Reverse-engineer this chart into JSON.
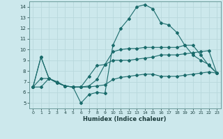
{
  "xlabel": "Humidex (Indice chaleur)",
  "xlim": [
    -0.5,
    23.5
  ],
  "ylim": [
    4.5,
    14.5
  ],
  "yticks": [
    5,
    6,
    7,
    8,
    9,
    10,
    11,
    12,
    13,
    14
  ],
  "xticks": [
    0,
    1,
    2,
    3,
    4,
    5,
    6,
    7,
    8,
    9,
    10,
    11,
    12,
    13,
    14,
    15,
    16,
    17,
    18,
    19,
    20,
    21,
    22,
    23
  ],
  "bg_color": "#cce8ec",
  "grid_color": "#b8d8dc",
  "line_color": "#1a6b6b",
  "line1_x": [
    0,
    1,
    2,
    3,
    4,
    5,
    6,
    7,
    8,
    9,
    10,
    11,
    12,
    13,
    14,
    15,
    16,
    17,
    18,
    19,
    20,
    21,
    22,
    23
  ],
  "line1_y": [
    6.5,
    9.3,
    7.3,
    7.0,
    6.6,
    6.5,
    5.0,
    5.8,
    6.0,
    5.9,
    10.4,
    12.0,
    12.9,
    14.0,
    14.2,
    13.8,
    12.5,
    12.3,
    11.6,
    10.4,
    9.5,
    9.0,
    8.6,
    7.8
  ],
  "line2_x": [
    0,
    1,
    2,
    3,
    4,
    5,
    6,
    7,
    8,
    9,
    10,
    11,
    12,
    13,
    14,
    15,
    16,
    17,
    18,
    19,
    20,
    21,
    22,
    23
  ],
  "line2_y": [
    6.5,
    9.3,
    7.3,
    6.9,
    6.6,
    6.5,
    6.5,
    6.6,
    7.2,
    8.6,
    9.8,
    10.0,
    10.1,
    10.1,
    10.2,
    10.2,
    10.2,
    10.2,
    10.2,
    10.4,
    10.4,
    9.5,
    8.5,
    7.8
  ],
  "line3_x": [
    0,
    1,
    2,
    3,
    4,
    5,
    6,
    7,
    8,
    9,
    10,
    11,
    12,
    13,
    14,
    15,
    16,
    17,
    18,
    19,
    20,
    21,
    22,
    23
  ],
  "line3_y": [
    6.5,
    7.3,
    7.3,
    6.9,
    6.6,
    6.5,
    6.5,
    7.5,
    8.5,
    8.6,
    9.0,
    9.0,
    9.0,
    9.1,
    9.2,
    9.3,
    9.5,
    9.5,
    9.5,
    9.6,
    9.7,
    9.8,
    9.9,
    7.8
  ],
  "line4_x": [
    0,
    1,
    2,
    3,
    4,
    5,
    6,
    7,
    8,
    9,
    10,
    11,
    12,
    13,
    14,
    15,
    16,
    17,
    18,
    19,
    20,
    21,
    22,
    23
  ],
  "line4_y": [
    6.5,
    6.5,
    7.3,
    6.9,
    6.6,
    6.5,
    6.5,
    6.5,
    6.6,
    6.7,
    7.2,
    7.4,
    7.5,
    7.6,
    7.7,
    7.7,
    7.5,
    7.5,
    7.5,
    7.6,
    7.7,
    7.8,
    7.9,
    7.8
  ]
}
